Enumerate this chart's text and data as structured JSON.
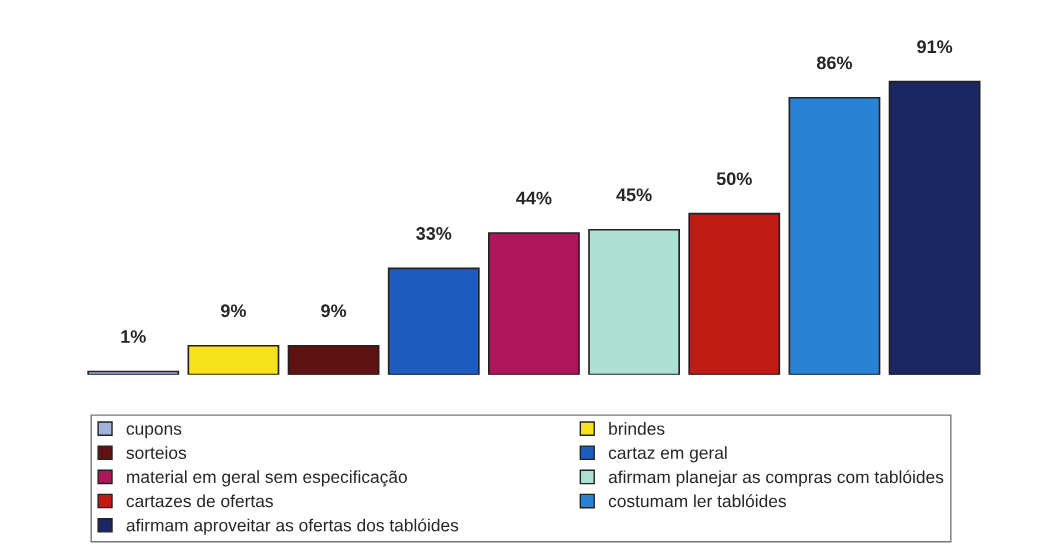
{
  "chart_data": {
    "type": "bar",
    "categories": [
      null,
      null,
      null,
      null,
      null,
      null,
      null,
      null,
      null
    ],
    "stacked": true,
    "series": [
      {
        "name": "cupons",
        "color": "#9fb3dc",
        "values": [
          1,
          null,
          null,
          null,
          null,
          null,
          null,
          null,
          null
        ],
        "value_labels": [
          "1%",
          null,
          null,
          null,
          null,
          null,
          null,
          null,
          null
        ]
      },
      {
        "name": "brindes",
        "color": "#f7e21c",
        "values": [
          null,
          9,
          null,
          null,
          null,
          null,
          null,
          null,
          null
        ],
        "value_labels": [
          null,
          "9%",
          null,
          null,
          null,
          null,
          null,
          null,
          null
        ]
      },
      {
        "name": "sorteios",
        "color": "#5e1212",
        "values": [
          null,
          null,
          9,
          null,
          null,
          null,
          null,
          null,
          null
        ],
        "value_labels": [
          null,
          null,
          "9%",
          null,
          null,
          null,
          null,
          null,
          null
        ]
      },
      {
        "name": "cartaz em geral",
        "color": "#1f5cbf",
        "values": [
          null,
          null,
          null,
          33,
          null,
          null,
          null,
          null,
          null
        ],
        "value_labels": [
          null,
          null,
          null,
          "33%",
          null,
          null,
          null,
          null,
          null
        ]
      },
      {
        "name": "material em geral sem especificação",
        "color": "#b0145a",
        "values": [
          null,
          null,
          null,
          null,
          44,
          null,
          null,
          null,
          null
        ],
        "value_labels": [
          null,
          null,
          null,
          null,
          "44%",
          null,
          null,
          null,
          null
        ]
      },
      {
        "name": "afirmam planejar as compras com tablóides",
        "color": "#ace0d2",
        "values": [
          null,
          null,
          null,
          null,
          null,
          45,
          null,
          null,
          null
        ],
        "value_labels": [
          null,
          null,
          null,
          null,
          null,
          "45%",
          null,
          null,
          null
        ]
      },
      {
        "name": "cartazes de ofertas",
        "color": "#bf1a14",
        "values": [
          null,
          null,
          null,
          null,
          null,
          null,
          50,
          null,
          null
        ],
        "value_labels": [
          null,
          null,
          null,
          null,
          null,
          null,
          "50%",
          null,
          null
        ]
      },
      {
        "name": "costumam ler tablóides",
        "color": "#2a82d4",
        "values": [
          null,
          null,
          null,
          null,
          null,
          null,
          null,
          86,
          null
        ],
        "value_labels": [
          null,
          null,
          null,
          null,
          null,
          null,
          null,
          "86%",
          null
        ]
      },
      {
        "name": "afirmam aproveitar as ofertas dos tablóides",
        "color": "#1a2763",
        "values": [
          null,
          null,
          null,
          null,
          null,
          null,
          null,
          null,
          91
        ],
        "value_labels": [
          null,
          null,
          null,
          null,
          null,
          null,
          null,
          null,
          "91%"
        ]
      }
    ],
    "legend": "bottom"
  }
}
